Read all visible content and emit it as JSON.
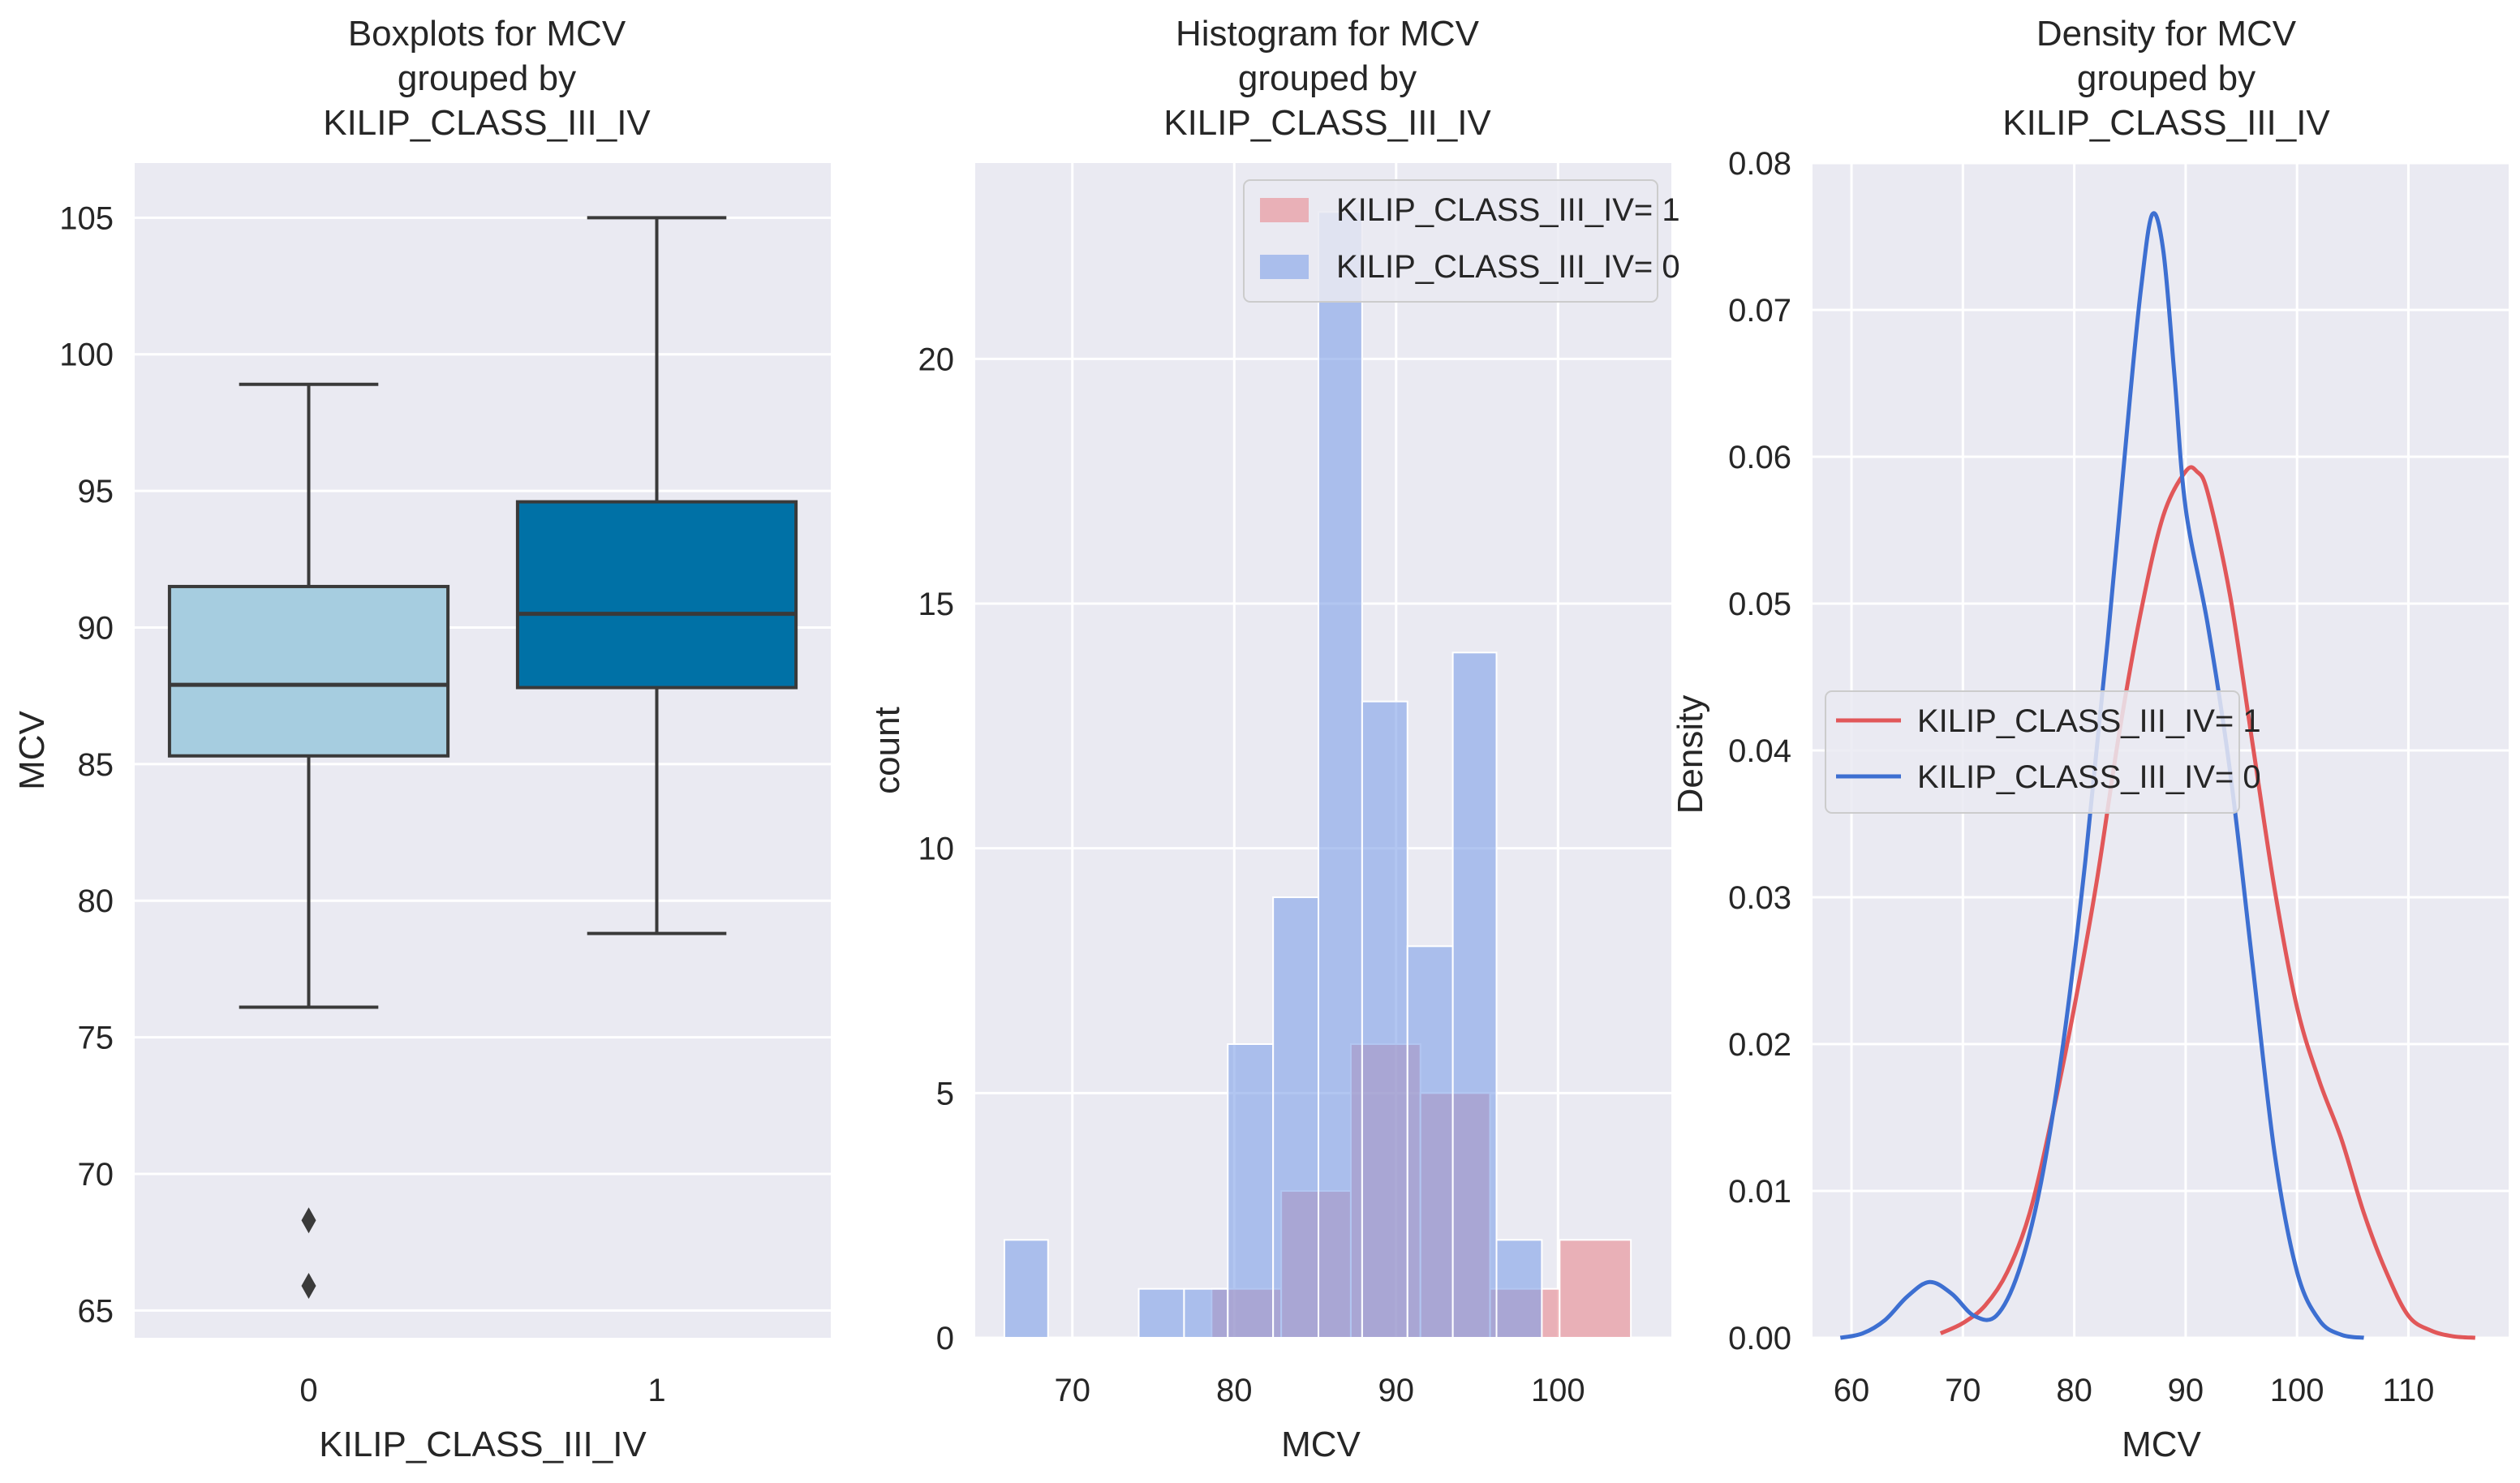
{
  "chart_data": [
    {
      "type": "box",
      "title_lines": [
        "Boxplots for MCV",
        "grouped by",
        "KILIP_CLASS_III_IV"
      ],
      "xlabel": "KILIP_CLASS_III_IV",
      "ylabel": "MCV",
      "ylim": [
        64,
        107
      ],
      "yticks": [
        65,
        70,
        75,
        80,
        85,
        90,
        95,
        100,
        105
      ],
      "categories": [
        "0",
        "1"
      ],
      "colors": [
        "#a6cde0",
        "#0071a6"
      ],
      "boxes": [
        {
          "category": "0",
          "whisker_low": 76.1,
          "q1": 85.3,
          "median": 87.9,
          "q3": 91.5,
          "whisker_high": 98.9,
          "outliers": [
            68.3,
            65.9
          ]
        },
        {
          "category": "1",
          "whisker_low": 78.8,
          "q1": 87.8,
          "median": 90.5,
          "q3": 94.6,
          "whisker_high": 105.0,
          "outliers": []
        }
      ]
    },
    {
      "type": "histogram",
      "title_lines": [
        "Histogram for MCV",
        "grouped by",
        "KILIP_CLASS_III_IV"
      ],
      "xlabel": "MCV",
      "ylabel": "count",
      "xlim": [
        64,
        107
      ],
      "ylim": [
        0,
        24
      ],
      "xticks": [
        70,
        80,
        90,
        100
      ],
      "yticks": [
        0,
        5,
        10,
        15,
        20
      ],
      "series": [
        {
          "name": "KILIP_CLASS_III_IV= 1",
          "color": "#e8888f",
          "bins": [
            {
              "x0": 78.6,
              "x1": 82.9,
              "count": 1
            },
            {
              "x0": 82.9,
              "x1": 87.2,
              "count": 3
            },
            {
              "x0": 87.2,
              "x1": 91.5,
              "count": 6
            },
            {
              "x0": 91.5,
              "x1": 95.8,
              "count": 5
            },
            {
              "x0": 95.8,
              "x1": 100.1,
              "count": 1
            },
            {
              "x0": 100.1,
              "x1": 104.5,
              "count": 2
            }
          ]
        },
        {
          "name": "KILIP_CLASS_III_IV= 0",
          "color": "#7ea0e8",
          "bins": [
            {
              "x0": 65.8,
              "x1": 68.5,
              "count": 2
            },
            {
              "x0": 68.5,
              "x1": 71.3,
              "count": 0
            },
            {
              "x0": 71.3,
              "x1": 74.1,
              "count": 0
            },
            {
              "x0": 74.1,
              "x1": 76.9,
              "count": 1
            },
            {
              "x0": 76.9,
              "x1": 79.6,
              "count": 1
            },
            {
              "x0": 79.6,
              "x1": 82.4,
              "count": 6
            },
            {
              "x0": 82.4,
              "x1": 85.2,
              "count": 9
            },
            {
              "x0": 85.2,
              "x1": 87.9,
              "count": 23
            },
            {
              "x0": 87.9,
              "x1": 90.7,
              "count": 13
            },
            {
              "x0": 90.7,
              "x1": 93.5,
              "count": 8
            },
            {
              "x0": 93.5,
              "x1": 96.2,
              "count": 14
            },
            {
              "x0": 96.2,
              "x1": 99.0,
              "count": 2
            }
          ]
        }
      ],
      "legend_position": "upper-right"
    },
    {
      "type": "line",
      "title_lines": [
        "Density for MCV",
        "grouped by",
        "KILIP_CLASS_III_IV"
      ],
      "xlabel": "MCV",
      "ylabel": "Density",
      "xlim": [
        56.5,
        119
      ],
      "ylim": [
        0,
        0.08
      ],
      "xticks": [
        60,
        70,
        80,
        90,
        100,
        110
      ],
      "yticks": [
        0.0,
        0.01,
        0.02,
        0.03,
        0.04,
        0.05,
        0.06,
        0.07,
        0.08
      ],
      "ytick_labels": [
        "0.00",
        "0.01",
        "0.02",
        "0.03",
        "0.04",
        "0.05",
        "0.06",
        "0.07",
        "0.08"
      ],
      "series": [
        {
          "name": "KILIP_CLASS_III_IV= 1",
          "color": "#e15759",
          "points": [
            [
              68,
              0.0003
            ],
            [
              70,
              0.001
            ],
            [
              72,
              0.0022
            ],
            [
              74,
              0.0045
            ],
            [
              76,
              0.0085
            ],
            [
              78,
              0.015
            ],
            [
              80,
              0.0225
            ],
            [
              82,
              0.031
            ],
            [
              84,
              0.041
            ],
            [
              86,
              0.0495
            ],
            [
              88,
              0.056
            ],
            [
              90,
              0.059
            ],
            [
              91,
              0.059
            ],
            [
              92,
              0.0575
            ],
            [
              94,
              0.0505
            ],
            [
              96,
              0.0405
            ],
            [
              98,
              0.0305
            ],
            [
              100,
              0.0225
            ],
            [
              102,
              0.0175
            ],
            [
              104,
              0.0135
            ],
            [
              106,
              0.0085
            ],
            [
              108,
              0.0045
            ],
            [
              110,
              0.0015
            ],
            [
              112,
              0.0005
            ],
            [
              114,
              0.0001
            ],
            [
              116,
              0.0
            ]
          ]
        },
        {
          "name": "KILIP_CLASS_III_IV= 0",
          "color": "#3d6fd1",
          "points": [
            [
              59,
              0.0
            ],
            [
              61,
              0.0003
            ],
            [
              63,
              0.0012
            ],
            [
              65,
              0.0028
            ],
            [
              67,
              0.0038
            ],
            [
              69,
              0.003
            ],
            [
              71,
              0.0015
            ],
            [
              73,
              0.0015
            ],
            [
              75,
              0.0045
            ],
            [
              77,
              0.0105
            ],
            [
              79,
              0.02
            ],
            [
              81,
              0.0325
            ],
            [
              83,
              0.0475
            ],
            [
              85,
              0.064
            ],
            [
              86,
              0.0715
            ],
            [
              87,
              0.0765
            ],
            [
              88,
              0.074
            ],
            [
              89,
              0.0655
            ],
            [
              90,
              0.0565
            ],
            [
              92,
              0.0485
            ],
            [
              94,
              0.0385
            ],
            [
              96,
              0.0255
            ],
            [
              98,
              0.0125
            ],
            [
              100,
              0.0045
            ],
            [
              102,
              0.0012
            ],
            [
              104,
              0.0002
            ],
            [
              106,
              0.0
            ]
          ]
        }
      ],
      "legend_position": "center-left"
    }
  ]
}
